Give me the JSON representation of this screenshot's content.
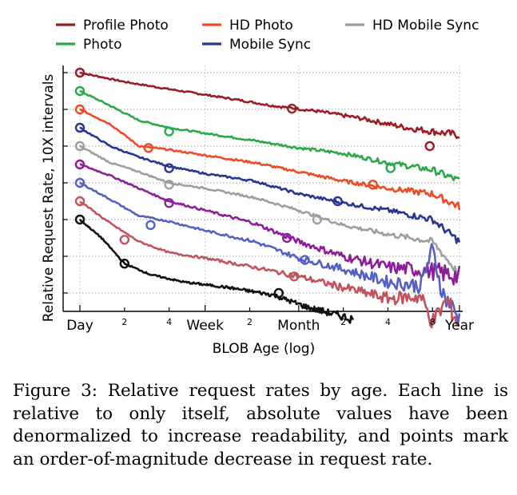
{
  "caption": "Figure 3: Relative request rates by age. Each line is relative to only itself, absolute values have been denormalized to increase readability, and points mark an order-of-magnitude decrease in request rate.",
  "chart_data": {
    "type": "line",
    "xlabel": "BLOB Age (log)",
    "ylabel": "Relative Request Rate, 10X intervals",
    "x_scale": "log",
    "x_ticks": [
      {
        "day": 1,
        "label": "Day",
        "major": true
      },
      {
        "day": 2,
        "label": "2",
        "major": false
      },
      {
        "day": 4,
        "label": "4",
        "major": false
      },
      {
        "day": 7,
        "label": "Week",
        "major": true
      },
      {
        "day": 14,
        "label": "2",
        "major": false
      },
      {
        "day": 30,
        "label": "Month",
        "major": true
      },
      {
        "day": 60,
        "label": "2",
        "major": false
      },
      {
        "day": 120,
        "label": "4",
        "major": false
      },
      {
        "day": 240,
        "label": "8",
        "major": false
      },
      {
        "day": 365,
        "label": "Year",
        "major": true
      }
    ],
    "grid": "horizontal dotted",
    "legend_position": "top",
    "series": [
      {
        "name": "Profile Photo",
        "color": "#9b1c24",
        "points": [
          [
            1,
            0
          ],
          [
            2,
            -0.25
          ],
          [
            4,
            -0.45
          ],
          [
            7,
            -0.6
          ],
          [
            12,
            -0.75
          ],
          [
            20,
            -0.9
          ],
          [
            40,
            -1.05
          ],
          [
            80,
            -1.25
          ],
          [
            160,
            -1.5
          ],
          [
            365,
            -1.7
          ]
        ],
        "markers": [
          [
            1,
            0
          ],
          [
            27,
            -0.98
          ],
          [
            230,
            -2.0
          ]
        ]
      },
      {
        "name": "Photo",
        "color": "#2aa84a",
        "points": [
          [
            1,
            -0.5
          ],
          [
            1.6,
            -0.9
          ],
          [
            2.5,
            -1.3
          ],
          [
            4,
            -1.5
          ],
          [
            7,
            -1.65
          ],
          [
            15,
            -1.85
          ],
          [
            30,
            -2.05
          ],
          [
            60,
            -2.2
          ],
          [
            120,
            -2.45
          ],
          [
            240,
            -2.65
          ],
          [
            365,
            -2.95
          ]
        ],
        "markers": [
          [
            1,
            -0.5
          ],
          [
            4,
            -1.6
          ],
          [
            125,
            -2.6
          ]
        ]
      },
      {
        "name": "HD Photo",
        "color": "#ef4a23",
        "points": [
          [
            1,
            -1.0
          ],
          [
            1.6,
            -1.4
          ],
          [
            2.5,
            -2.0
          ],
          [
            4,
            -2.1
          ],
          [
            7,
            -2.25
          ],
          [
            15,
            -2.45
          ],
          [
            30,
            -2.7
          ],
          [
            60,
            -2.95
          ],
          [
            120,
            -3.15
          ],
          [
            240,
            -3.3
          ],
          [
            365,
            -3.65
          ]
        ],
        "markers": [
          [
            1,
            -1.0
          ],
          [
            2.9,
            -2.05
          ],
          [
            95,
            -3.05
          ]
        ]
      },
      {
        "name": "Mobile Sync",
        "color": "#283593",
        "points": [
          [
            1,
            -1.5
          ],
          [
            1.6,
            -2.0
          ],
          [
            2.5,
            -2.3
          ],
          [
            4,
            -2.55
          ],
          [
            7,
            -2.75
          ],
          [
            15,
            -2.95
          ],
          [
            30,
            -3.3
          ],
          [
            60,
            -3.55
          ],
          [
            120,
            -3.75
          ],
          [
            240,
            -4.0
          ],
          [
            365,
            -4.6
          ]
        ],
        "markers": [
          [
            1,
            -1.5
          ],
          [
            4,
            -2.6
          ],
          [
            55,
            -3.5
          ]
        ]
      },
      {
        "name": "HD Mobile Sync",
        "color": "#9e9e9e",
        "points": [
          [
            1,
            -2.0
          ],
          [
            1.6,
            -2.45
          ],
          [
            2.5,
            -2.7
          ],
          [
            4,
            -3.0
          ],
          [
            7,
            -3.15
          ],
          [
            15,
            -3.4
          ],
          [
            30,
            -3.75
          ],
          [
            60,
            -4.15
          ],
          [
            120,
            -4.4
          ],
          [
            240,
            -4.6
          ],
          [
            365,
            -5.5
          ]
        ],
        "markers": [
          [
            1,
            -2.0
          ],
          [
            4,
            -3.05
          ],
          [
            40,
            -4.0
          ]
        ]
      },
      {
        "name": "",
        "color": "#8e1d9a",
        "points": [
          [
            1,
            -2.5
          ],
          [
            1.6,
            -2.8
          ],
          [
            2.5,
            -3.15
          ],
          [
            4,
            -3.5
          ],
          [
            7,
            -3.75
          ],
          [
            15,
            -4.1
          ],
          [
            30,
            -4.6
          ],
          [
            60,
            -5.0
          ],
          [
            120,
            -5.3
          ],
          [
            240,
            -5.4
          ],
          [
            365,
            -5.55
          ]
        ],
        "markers": [
          [
            1,
            -2.5
          ],
          [
            4,
            -3.55
          ],
          [
            25,
            -4.5
          ]
        ]
      },
      {
        "name": "",
        "color": "#5560c4",
        "points": [
          [
            1,
            -3.0
          ],
          [
            1.6,
            -3.45
          ],
          [
            2.5,
            -3.9
          ],
          [
            4,
            -4.05
          ],
          [
            7,
            -4.3
          ],
          [
            15,
            -4.6
          ],
          [
            30,
            -5.05
          ],
          [
            60,
            -5.35
          ],
          [
            120,
            -5.7
          ],
          [
            200,
            -5.8
          ],
          [
            240,
            -4.8
          ],
          [
            280,
            -6.0
          ],
          [
            365,
            -6.7
          ]
        ],
        "markers": [
          [
            1,
            -3.0
          ],
          [
            3,
            -4.15
          ],
          [
            33,
            -5.1
          ]
        ]
      },
      {
        "name": "",
        "color": "#c2525e",
        "points": [
          [
            1,
            -3.5
          ],
          [
            1.6,
            -4.1
          ],
          [
            2.5,
            -4.6
          ],
          [
            4,
            -4.9
          ],
          [
            7,
            -5.05
          ],
          [
            15,
            -5.3
          ],
          [
            30,
            -5.55
          ],
          [
            60,
            -5.85
          ],
          [
            120,
            -6.15
          ],
          [
            200,
            -6.1
          ],
          [
            240,
            -6.8
          ],
          [
            300,
            -6.2
          ],
          [
            365,
            -6.9
          ]
        ],
        "markers": [
          [
            1,
            -3.5
          ],
          [
            2,
            -4.55
          ],
          [
            28,
            -5.55
          ]
        ]
      },
      {
        "name": "",
        "color": "#111111",
        "points": [
          [
            1,
            -4.0
          ],
          [
            1.4,
            -4.5
          ],
          [
            2,
            -5.2
          ],
          [
            3,
            -5.5
          ],
          [
            5,
            -5.7
          ],
          [
            10,
            -5.85
          ],
          [
            20,
            -6.05
          ],
          [
            35,
            -6.4
          ],
          [
            55,
            -6.6
          ],
          [
            70,
            -6.72
          ]
        ],
        "markers": [
          [
            1,
            -4.0
          ],
          [
            2,
            -5.2
          ],
          [
            22,
            -6.0
          ]
        ]
      }
    ]
  }
}
